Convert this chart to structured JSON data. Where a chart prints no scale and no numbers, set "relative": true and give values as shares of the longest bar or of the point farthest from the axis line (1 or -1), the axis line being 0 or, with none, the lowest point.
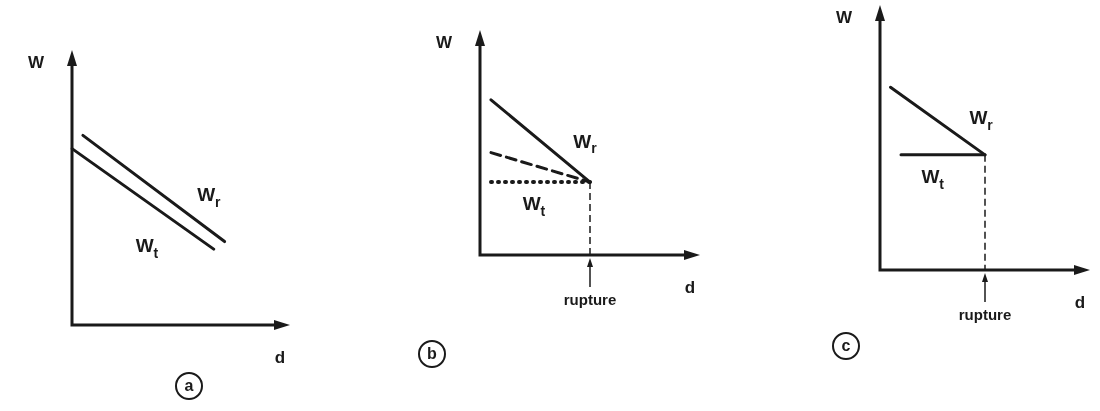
{
  "chart_data": [
    {
      "type": "line",
      "title": "a",
      "xlabel": "d",
      "ylabel": "W",
      "relative": true,
      "categories": [
        null,
        null,
        null,
        null,
        null,
        null,
        null,
        null,
        null,
        null,
        null,
        null,
        null,
        null,
        null,
        null,
        null,
        null,
        null,
        null,
        null
      ],
      "series": [
        {
          "name": "W$_{r}$",
          "color": "#1a1a1a",
          "values": [
            null,
            1,
            null,
            null,
            null,
            null,
            null,
            null,
            null,
            null,
            null,
            null,
            null,
            null,
            0.44,
            null,
            null,
            null,
            null,
            null,
            null
          ]
        },
        {
          "name": "W$_{t}$",
          "color": "#1a1a1a",
          "values": [
            0.93,
            null,
            null,
            null,
            null,
            null,
            null,
            null,
            null,
            null,
            null,
            null,
            null,
            0.4,
            null,
            null,
            null,
            null,
            null,
            null,
            null
          ]
        }
      ]
    },
    {
      "type": "line",
      "title": "b",
      "xlabel": "d",
      "ylabel": "W",
      "relative": true,
      "annotations": [
        "rupture"
      ],
      "categories": [
        null,
        null,
        null,
        null,
        null,
        null,
        null,
        null,
        null,
        null,
        null,
        null,
        null,
        null,
        null,
        null,
        null,
        null,
        null,
        null,
        null
      ],
      "series": [
        {
          "name": "W$_{r}$",
          "color": "#1a1a1a",
          "values": [
            null,
            1,
            null,
            null,
            null,
            null,
            null,
            null,
            null,
            null,
            0.47,
            null,
            null,
            null,
            null,
            null,
            null,
            null,
            null,
            null,
            null
          ]
        },
        {
          "color": "#1a1a1a",
          "line_style": "dashed",
          "values": [
            null,
            0.66,
            null,
            null,
            null,
            null,
            null,
            null,
            null,
            null,
            0.47,
            null,
            null,
            null,
            null,
            null,
            null,
            null,
            null,
            null,
            null
          ]
        },
        {
          "name": "W$_{t}$",
          "color": "#1a1a1a",
          "line_style": "dotted",
          "values": [
            null,
            0.47,
            null,
            null,
            null,
            null,
            null,
            null,
            null,
            null,
            0.47,
            null,
            null,
            null,
            null,
            null,
            null,
            null,
            null,
            null,
            null
          ]
        }
      ]
    },
    {
      "type": "line",
      "title": "c",
      "xlabel": "d",
      "ylabel": "W",
      "relative": true,
      "annotations": [
        "rupture"
      ],
      "categories": [
        null,
        null,
        null,
        null,
        null,
        null,
        null,
        null,
        null,
        null,
        null,
        null,
        null,
        null,
        null,
        null,
        null,
        null,
        null,
        null,
        null
      ],
      "series": [
        {
          "name": "W$_{r}$",
          "color": "#1a1a1a",
          "values": [
            null,
            1,
            null,
            null,
            null,
            null,
            null,
            null,
            null,
            null,
            0.63,
            null,
            null,
            null,
            null,
            null,
            null,
            null,
            null,
            null,
            null
          ]
        },
        {
          "name": "W$_{t}$",
          "color": "#1a1a1a",
          "values": [
            null,
            null,
            0.63,
            null,
            null,
            null,
            null,
            null,
            null,
            null,
            0.63,
            null,
            null,
            null,
            null,
            null,
            null,
            null,
            null,
            null,
            null
          ]
        }
      ]
    }
  ]
}
